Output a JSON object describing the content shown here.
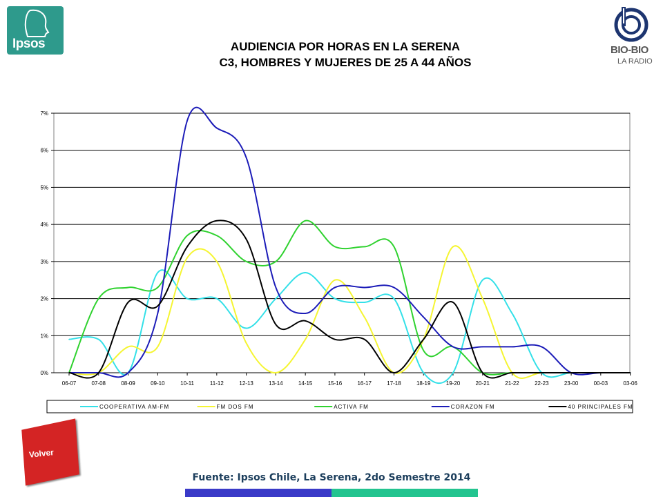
{
  "logos": {
    "ipsos_text": "Ipsos",
    "biobio_text": "BIO-BIO",
    "biobio_sub": "LA RADIO"
  },
  "title": {
    "line1": "AUDIENCIA POR HORAS EN LA SERENA",
    "line2": "C3, HOMBRES Y MUJERES DE 25 A 44 AÑOS"
  },
  "volver_label": "Volver",
  "source": "Fuente: Ipsos Chile, La Serena, 2do Semestre 2014",
  "colors": {
    "bottom_bar_left": "#3a3ac8",
    "bottom_bar_right": "#23c48f",
    "volver": "#d42424"
  },
  "chart_data": {
    "type": "line",
    "title": "",
    "xlabel": "",
    "ylabel": "",
    "ylim": [
      0,
      7
    ],
    "y_ticks": [
      "0%",
      "1%",
      "2%",
      "3%",
      "4%",
      "5%",
      "6%",
      "7%"
    ],
    "grid": true,
    "legend_position": "bottom",
    "categories": [
      "06-07",
      "07-08",
      "08-09",
      "09-10",
      "10-11",
      "11-12",
      "12-13",
      "13-14",
      "14-15",
      "15-16",
      "16-17",
      "17-18",
      "18-19",
      "19-20",
      "20-21",
      "21-22",
      "22-23",
      "23-00",
      "00-03",
      "03-06"
    ],
    "series": [
      {
        "name": "COOPERATIVA AM-FM",
        "color": "#33e0e8",
        "values": [
          0.9,
          0.9,
          0.0,
          2.7,
          2.0,
          2.0,
          1.2,
          2.0,
          2.7,
          2.0,
          1.9,
          2.0,
          0.0,
          0.0,
          2.5,
          1.6,
          0.0,
          0.0,
          0.0,
          0.0
        ]
      },
      {
        "name": "FM DOS FM",
        "color": "#f5f532",
        "values": [
          0.0,
          0.0,
          0.7,
          0.7,
          3.1,
          3.0,
          0.8,
          0.0,
          0.9,
          2.5,
          1.5,
          0.0,
          0.9,
          3.4,
          2.0,
          0.0,
          0.0,
          0.0,
          0.0,
          0.0
        ]
      },
      {
        "name": "ACTIVA FM",
        "color": "#2fd22f",
        "values": [
          0.0,
          2.0,
          2.3,
          2.3,
          3.7,
          3.7,
          3.0,
          3.0,
          4.1,
          3.4,
          3.4,
          3.4,
          0.6,
          0.7,
          0.0,
          0.0,
          0.0,
          0.0,
          0.0,
          0.0
        ]
      },
      {
        "name": "CORAZON FM",
        "color": "#1c1cb8",
        "values": [
          0.0,
          0.0,
          0.0,
          1.6,
          6.8,
          6.6,
          5.8,
          2.3,
          1.6,
          2.3,
          2.3,
          2.3,
          1.5,
          0.7,
          0.7,
          0.7,
          0.7,
          0.0,
          0.0,
          0.0
        ]
      },
      {
        "name": "40 PRINCIPALES FM",
        "color": "#000000",
        "values": [
          0.0,
          0.0,
          1.9,
          1.8,
          3.4,
          4.1,
          3.6,
          1.3,
          1.4,
          0.9,
          0.9,
          0.0,
          0.9,
          1.9,
          0.0,
          0.0,
          0.0,
          0.0,
          0.0,
          0.0
        ]
      }
    ]
  }
}
